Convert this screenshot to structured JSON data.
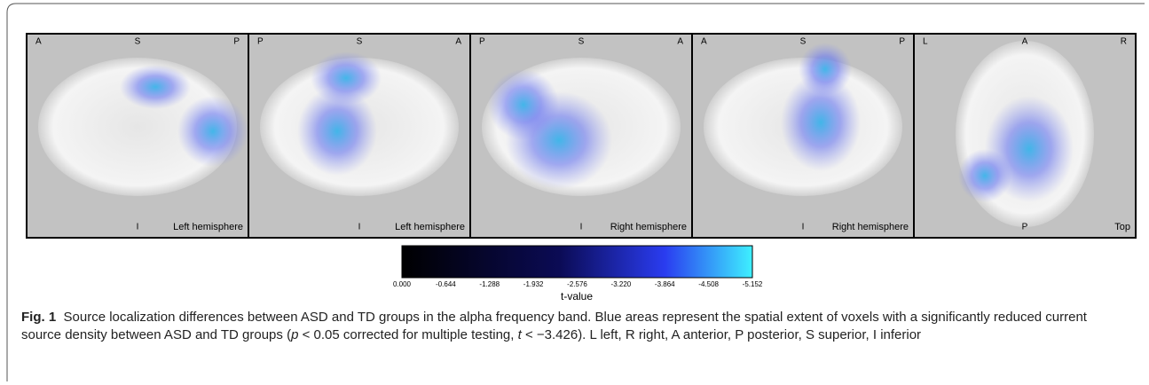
{
  "panels": [
    {
      "tl": "A",
      "tc": "S",
      "tr": "P",
      "bc": "I",
      "br": "Left hemisphere"
    },
    {
      "tl": "P",
      "tc": "S",
      "tr": "A",
      "bc": "I",
      "br": "Left hemisphere"
    },
    {
      "tl": "P",
      "tc": "S",
      "tr": "A",
      "bc": "I",
      "br": "Right hemisphere"
    },
    {
      "tl": "A",
      "tc": "S",
      "tr": "P",
      "bc": "I",
      "br": "Right hemisphere"
    },
    {
      "tl": "L",
      "tc": "A",
      "tr": "R",
      "bc": "P",
      "br": "Top"
    }
  ],
  "colorbar": {
    "ticks": [
      "0.000",
      "-0.644",
      "-1.288",
      "-1.932",
      "-2.576",
      "-3.220",
      "-3.864",
      "-4.508",
      "-5.152"
    ],
    "label": "t-value"
  },
  "caption": {
    "label": "Fig. 1",
    "text_1": "Source localization differences between ASD and TD groups in the alpha frequency band. Blue areas represent the spatial extent of voxels with a significantly reduced current source density between ASD and TD groups (",
    "p": "p",
    "text_2": " < 0.05 corrected for multiple testing, ",
    "t": "t",
    "text_3": " < −3.426). L left, R right, A anterior, P posterior, S superior, I inferior"
  }
}
